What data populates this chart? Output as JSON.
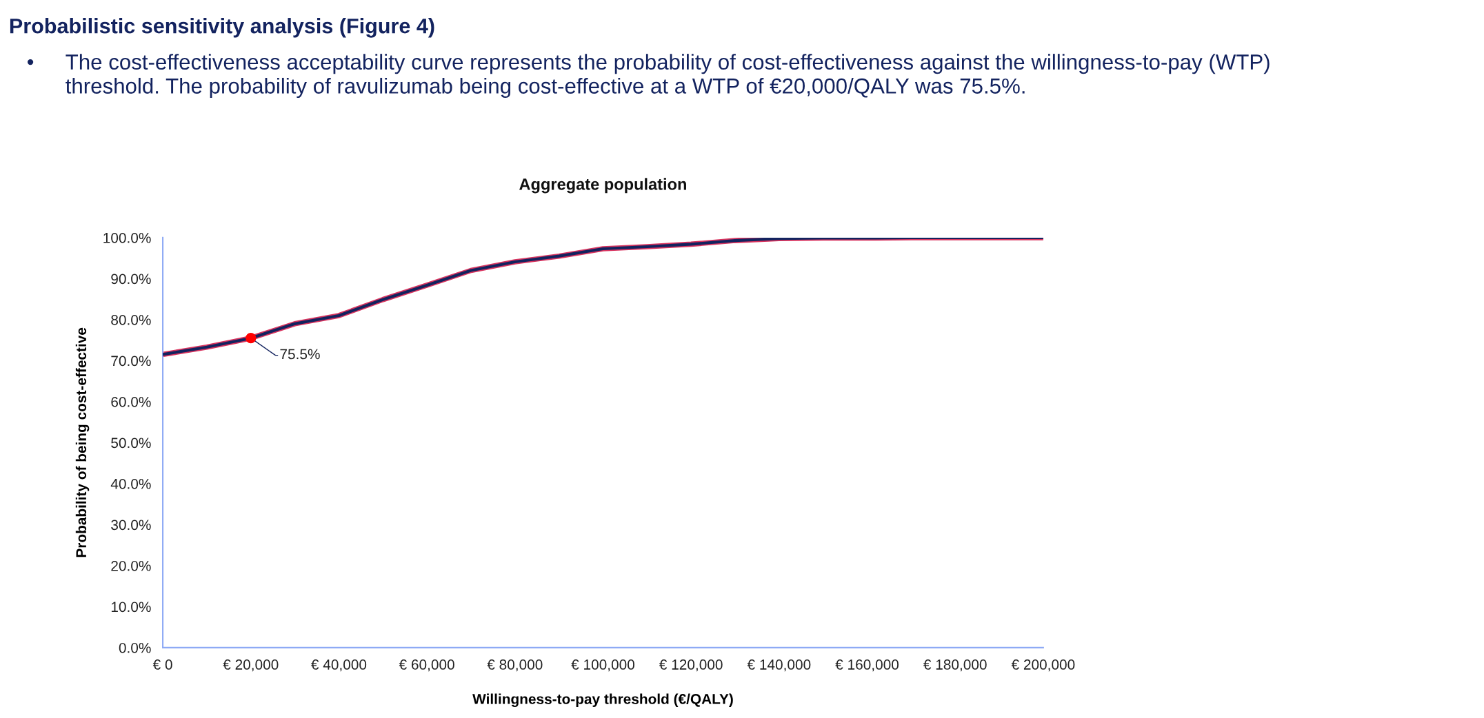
{
  "chart_data": {
    "type": "line",
    "title": "Aggregate population",
    "xlabel": "Willingness-to-pay threshold (€/QALY)",
    "ylabel": "Probability of being cost-effective",
    "x": [
      0,
      10000,
      20000,
      30000,
      40000,
      50000,
      60000,
      70000,
      80000,
      90000,
      100000,
      110000,
      120000,
      130000,
      140000,
      150000,
      160000,
      170000,
      180000,
      190000,
      200000
    ],
    "series": [
      {
        "color": "#13235f",
        "values": [
          71.5,
          73.3,
          75.5,
          79.0,
          81.0,
          84.9,
          88.4,
          92.0,
          94.1,
          95.5,
          97.3,
          97.8,
          98.4,
          99.3,
          99.8,
          99.9,
          99.9,
          100,
          100,
          100,
          100
        ]
      }
    ],
    "xlim": [
      0,
      200000
    ],
    "ylim": [
      0,
      100
    ],
    "xticks": [
      {
        "value": 0,
        "label": "€ 0"
      },
      {
        "value": 20000,
        "label": "€ 20,000"
      },
      {
        "value": 40000,
        "label": "€ 40,000"
      },
      {
        "value": 60000,
        "label": "€ 60,000"
      },
      {
        "value": 80000,
        "label": "€ 80,000"
      },
      {
        "value": 100000,
        "label": "€ 100,000"
      },
      {
        "value": 120000,
        "label": "€ 120,000"
      },
      {
        "value": 140000,
        "label": "€ 140,000"
      },
      {
        "value": 160000,
        "label": "€ 160,000"
      },
      {
        "value": 180000,
        "label": "€ 180,000"
      },
      {
        "value": 200000,
        "label": "€ 200,000"
      }
    ],
    "yticks": [
      {
        "value": 0,
        "label": "0.0%"
      },
      {
        "value": 10,
        "label": "10.0%"
      },
      {
        "value": 20,
        "label": "20.0%"
      },
      {
        "value": 30,
        "label": "30.0%"
      },
      {
        "value": 40,
        "label": "40.0%"
      },
      {
        "value": 50,
        "label": "50.0%"
      },
      {
        "value": 60,
        "label": "60.0%"
      },
      {
        "value": 70,
        "label": "70.0%"
      },
      {
        "value": 80,
        "label": "80.0%"
      },
      {
        "value": 90,
        "label": "90.0%"
      },
      {
        "value": 100,
        "label": "100.0%"
      }
    ],
    "grid": false,
    "legend": false,
    "marker": "none",
    "line_style": "solid",
    "annotations": [
      "Probabilistic sensitivity analysis (Figure 4)",
      "•",
      "The cost-effectiveness acceptability curve represents the probability of cost-effectiveness against the willingness-to-pay (WTP) threshold. The probability of ravulizumab being cost-effective at a WTP of €20,000/QALY was 75.5%.",
      {
        "text": "75.5%",
        "x": 20000,
        "y": 75.5
      }
    ]
  }
}
